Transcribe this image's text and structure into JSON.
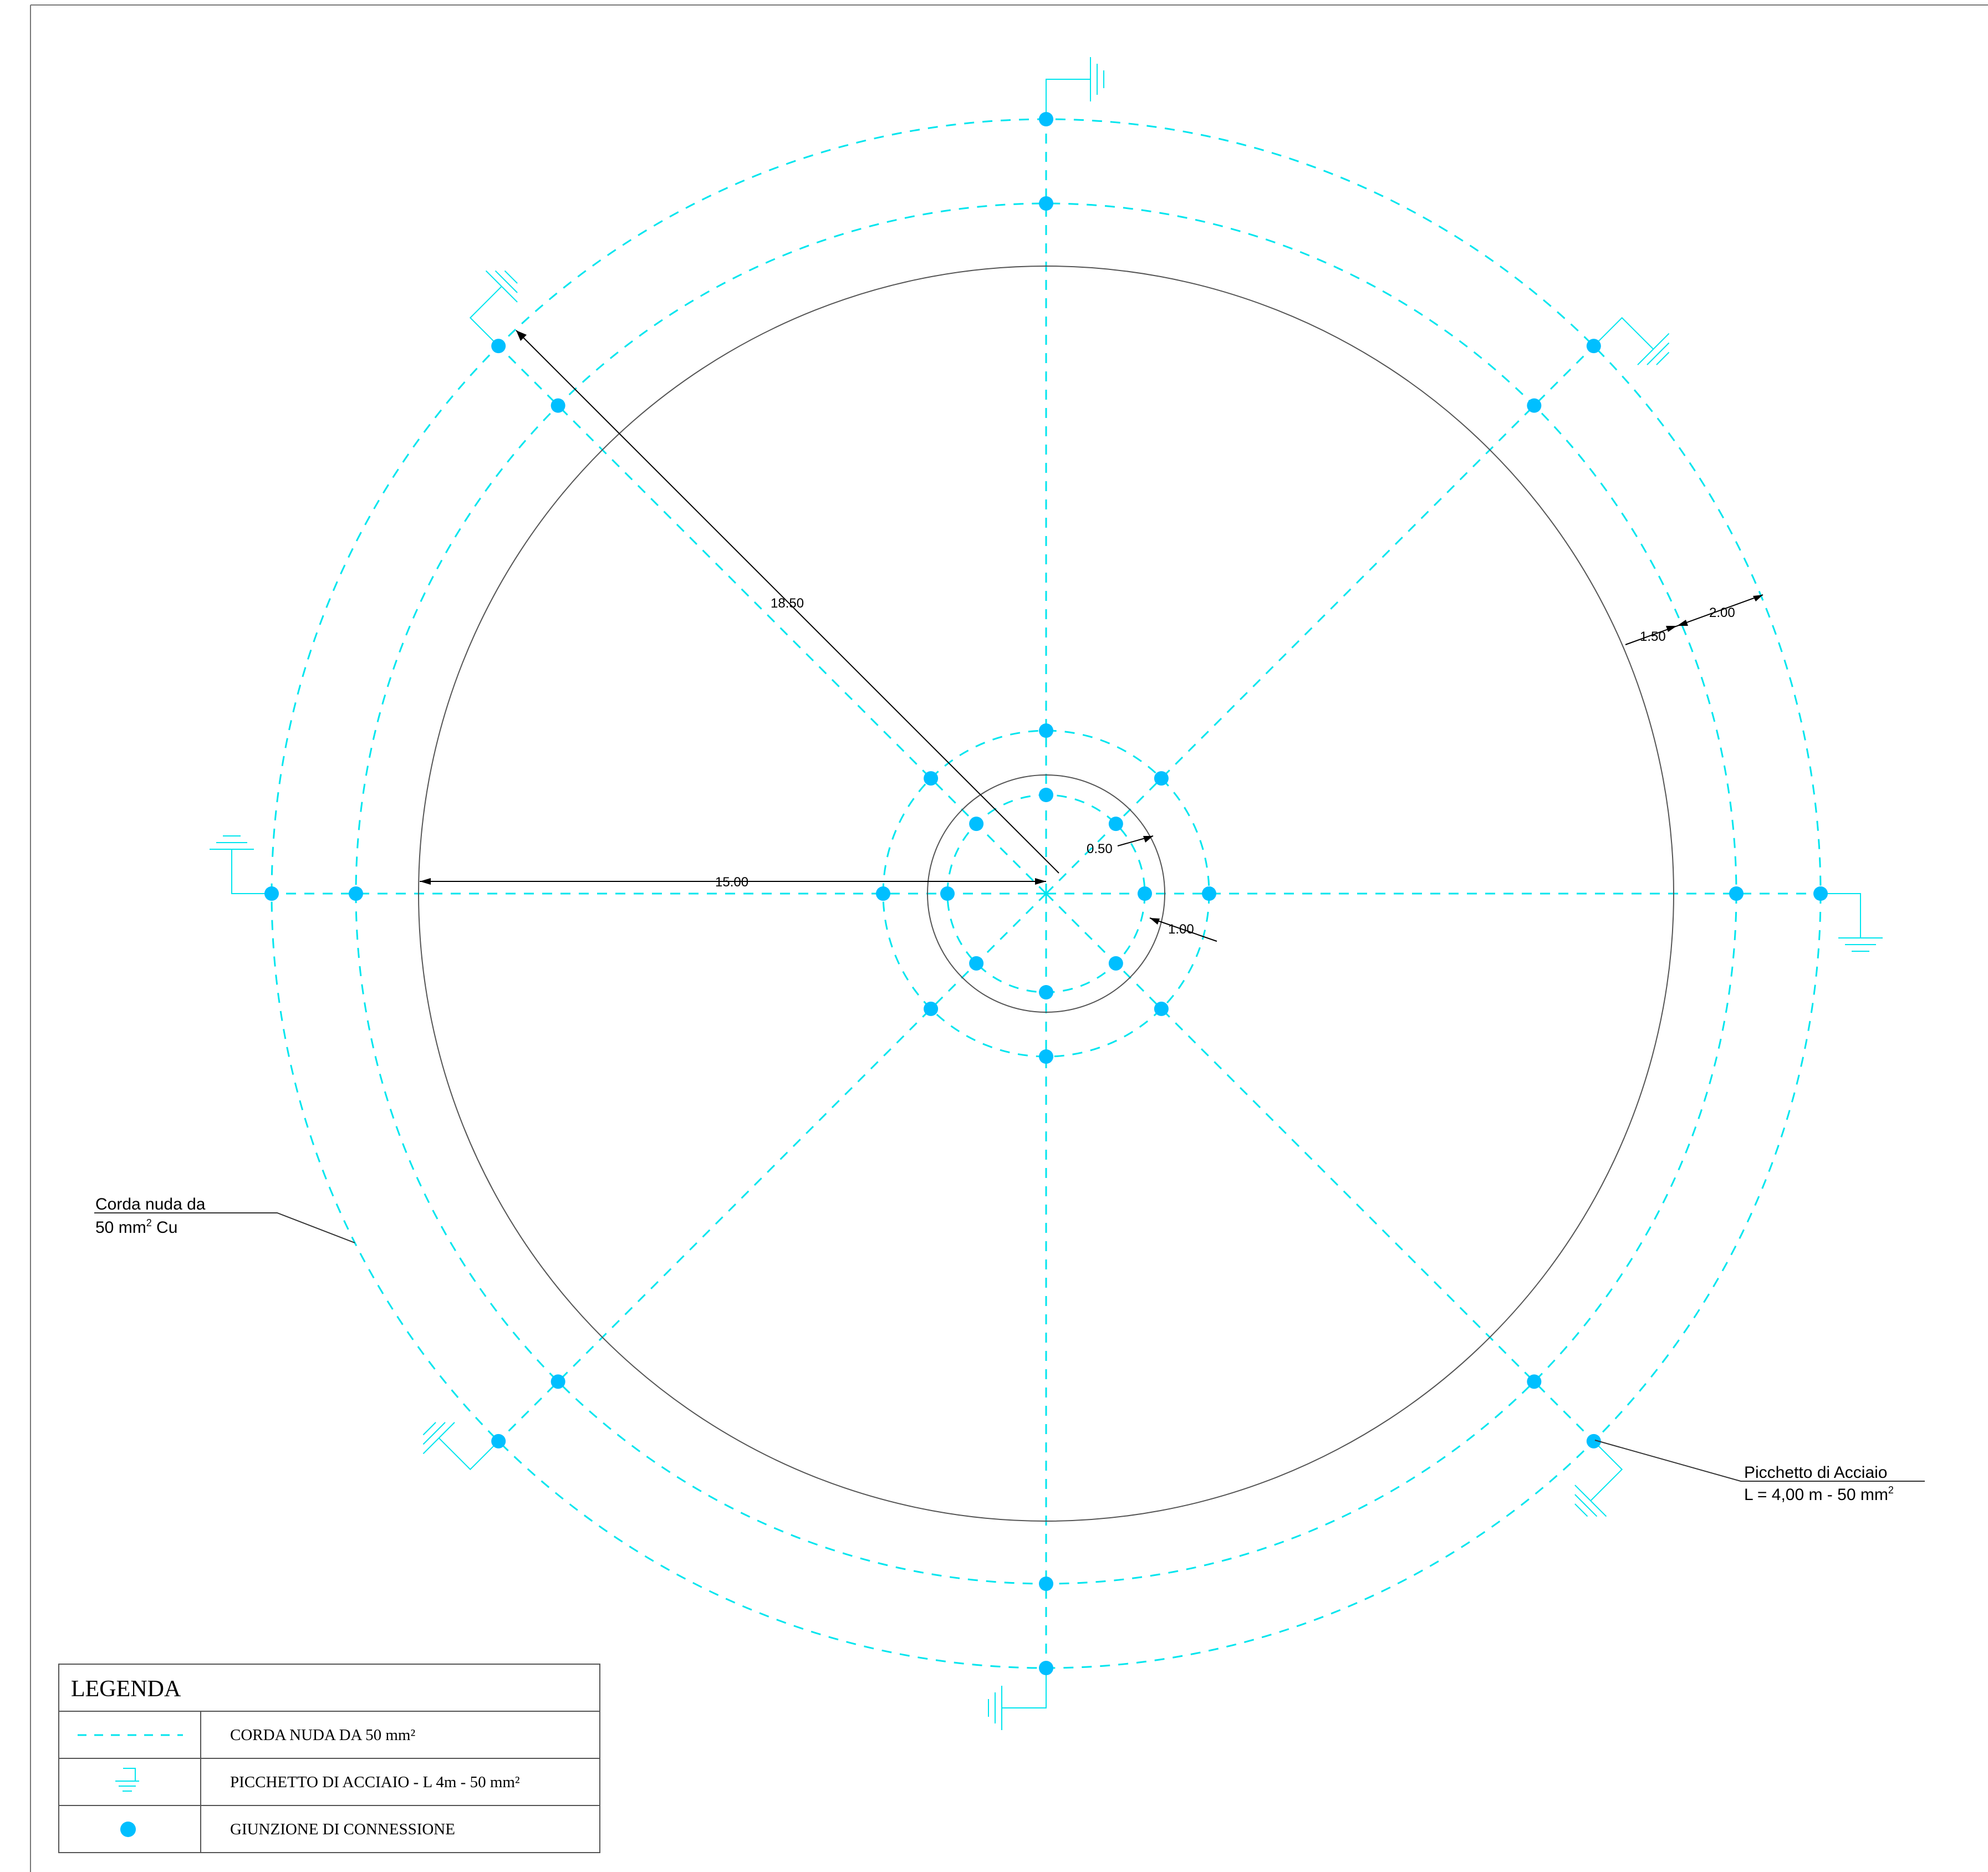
{
  "colors": {
    "conductor": "#00e5ee",
    "junction": "#00bfff",
    "outline": "#555555",
    "ink": "#000000"
  },
  "dimensions": {
    "radius_diagonal": "18.50",
    "radius_horizontal": "15.00",
    "ring_offset_a": "1.50",
    "ring_offset_b": "2.00",
    "inner_offset_a": "0.50",
    "inner_offset_b": "1.00"
  },
  "notes": {
    "cable": {
      "line1": "Corda nuda da",
      "line2_value": "50 mm",
      "line2_sup": "2",
      "line2_tail": " Cu"
    },
    "rod": {
      "line1": "Picchetto di Acciaio",
      "line2_value": "L = 4,00 m - 50 mm",
      "line2_sup": "2"
    }
  },
  "legend": {
    "title": "LEGENDA",
    "items": [
      {
        "symbol": "dashed-line",
        "label": "CORDA NUDA DA 50 mm²"
      },
      {
        "symbol": "earth-rod-icon",
        "label": "PICCHETTO DI ACCIAIO - L 4m - 50 mm²"
      },
      {
        "symbol": "junction-dot",
        "label": "GIUNZIONE DI CONNESSIONE"
      }
    ]
  }
}
